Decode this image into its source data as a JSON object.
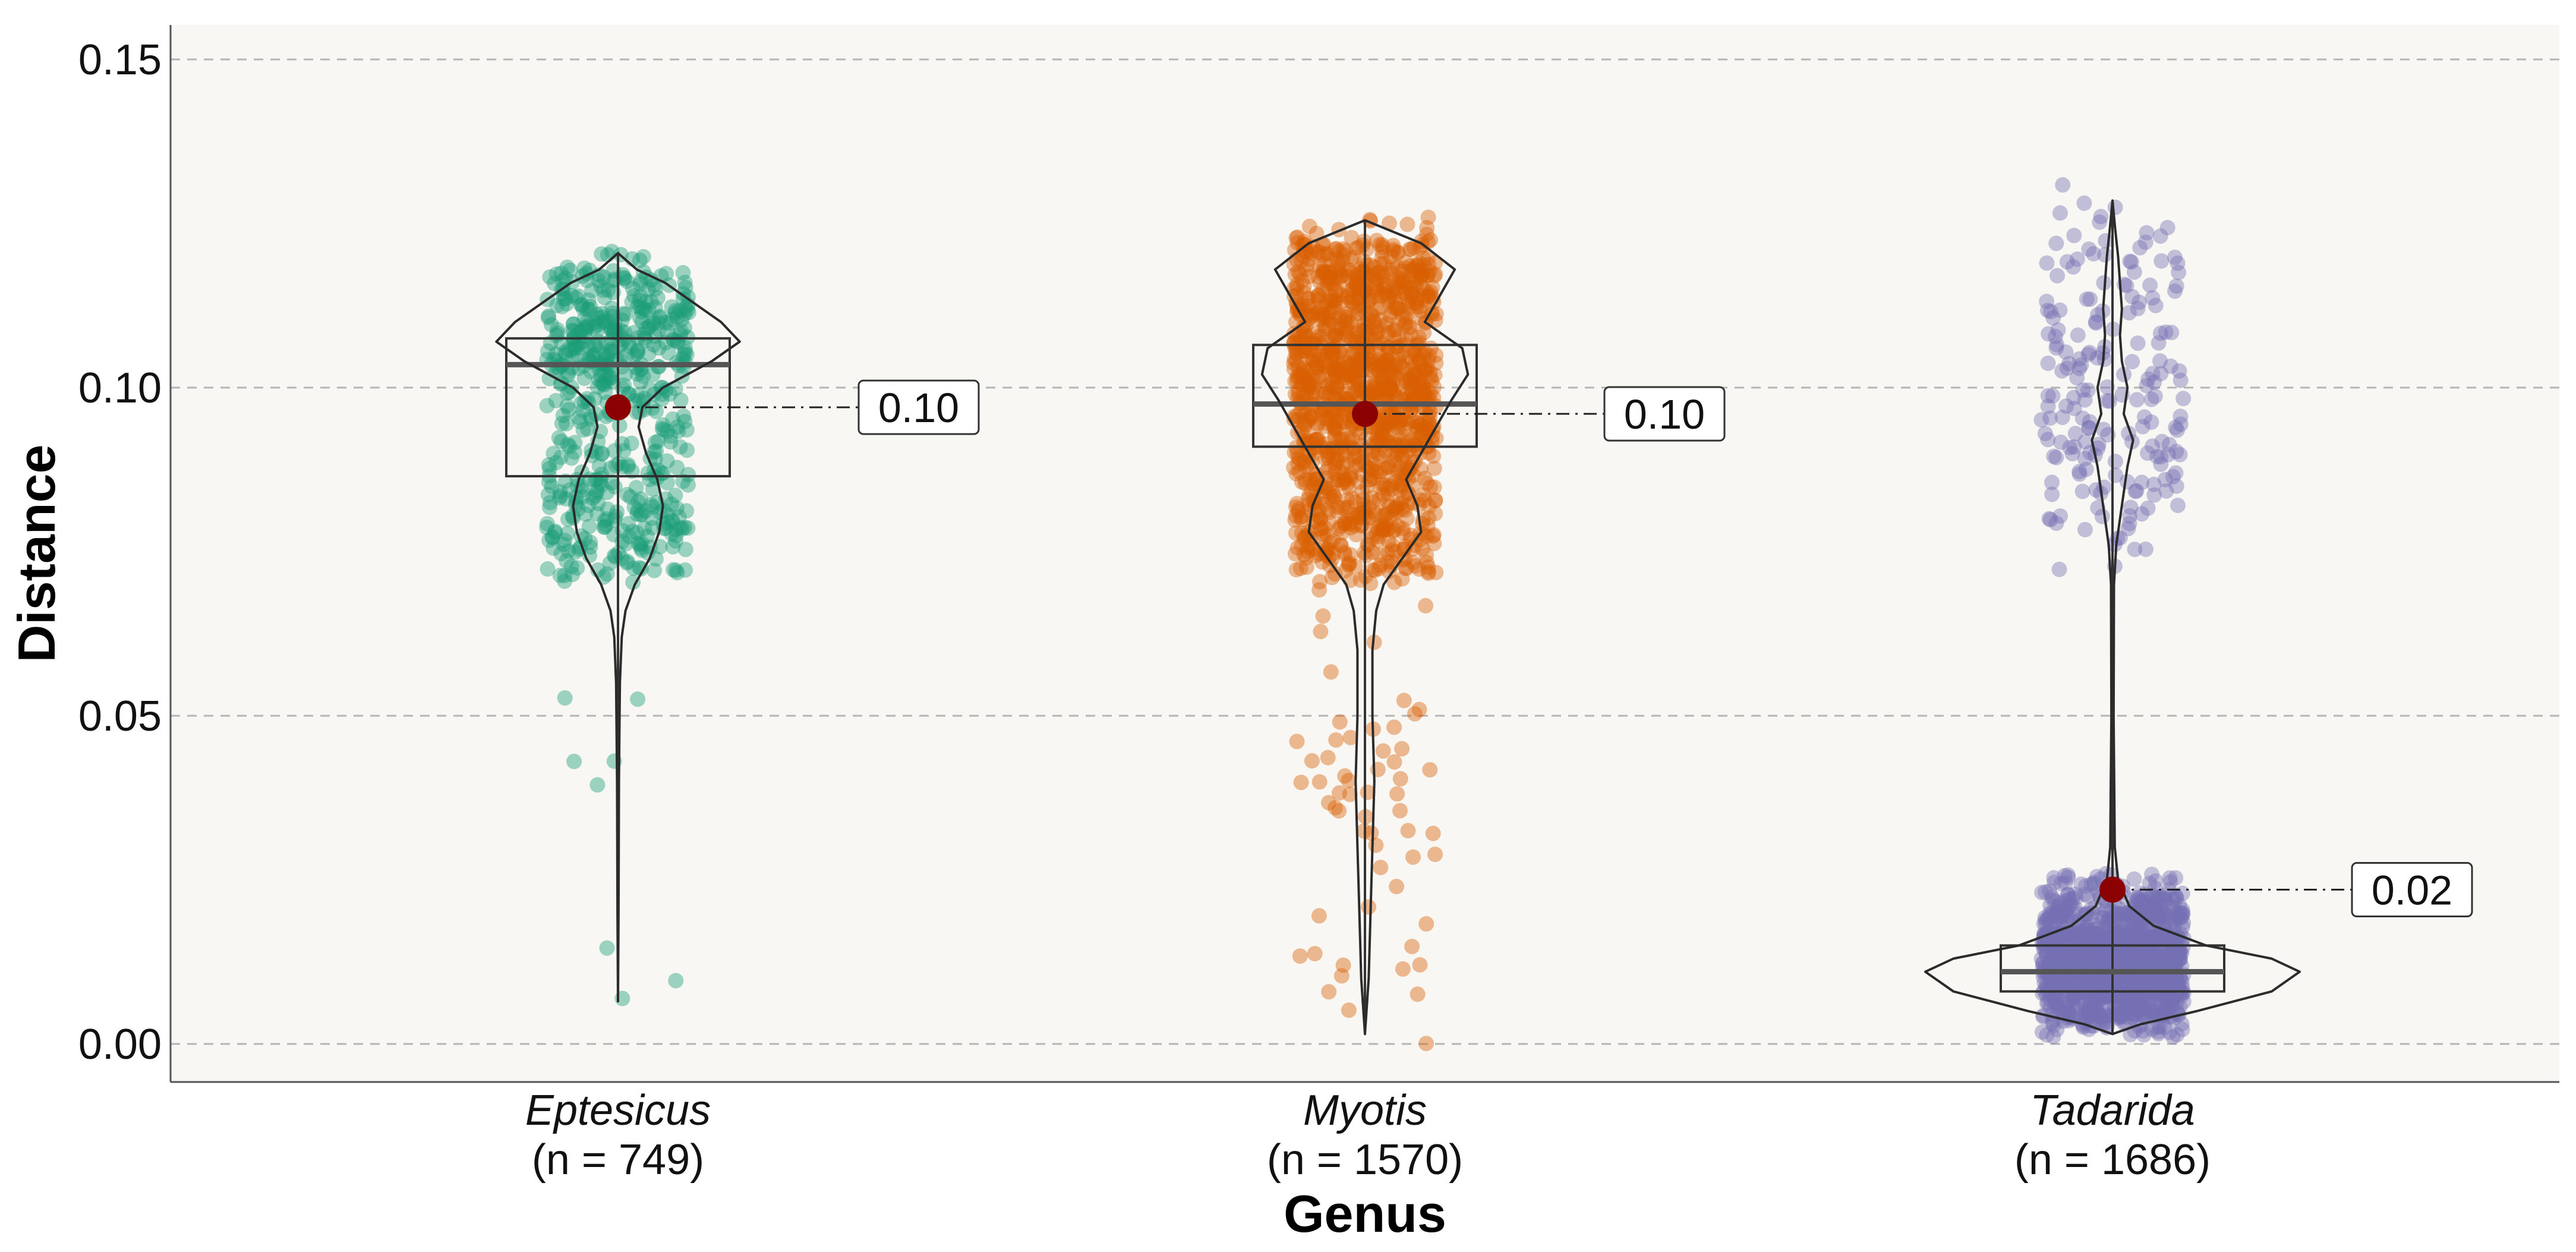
{
  "chart_data": {
    "type": "violin-box-jitter",
    "xlabel": "Genus",
    "ylabel": "Distance",
    "ylim": [
      -0.0055,
      0.155
    ],
    "yticks": [
      0.0,
      0.05,
      0.1,
      0.15
    ],
    "ytick_labels": [
      "0.00",
      "0.05",
      "0.10",
      "0.15"
    ],
    "grid": "horizontal-dashed",
    "mean_marker_color": "#8b0000",
    "panel_background": "#f9f7f3",
    "groups": [
      {
        "name": "Eptesicus",
        "n_label": "(n = 749)",
        "n": 749,
        "color": "#1b9e77",
        "mean": 0.097,
        "mean_label": "0.10",
        "box": {
          "q1": 0.0865,
          "median": 0.1035,
          "q3": 0.1075,
          "whisker_low": 0.0065,
          "whisker_high": 0.1205
        },
        "violin": [
          [
            0.0065,
            0.0
          ],
          [
            0.02,
            0.003
          ],
          [
            0.04,
            0.005
          ],
          [
            0.055,
            0.01
          ],
          [
            0.062,
            0.02
          ],
          [
            0.066,
            0.04
          ],
          [
            0.07,
            0.09
          ],
          [
            0.074,
            0.17
          ],
          [
            0.078,
            0.22
          ],
          [
            0.082,
            0.24
          ],
          [
            0.086,
            0.21
          ],
          [
            0.09,
            0.15
          ],
          [
            0.094,
            0.11
          ],
          [
            0.097,
            0.13
          ],
          [
            0.1,
            0.24
          ],
          [
            0.104,
            0.5
          ],
          [
            0.107,
            0.65
          ],
          [
            0.11,
            0.55
          ],
          [
            0.113,
            0.4
          ],
          [
            0.116,
            0.25
          ],
          [
            0.118,
            0.1
          ],
          [
            0.1205,
            0.0
          ]
        ],
        "points": [
          {
            "y": 0.0095,
            "count": 1
          },
          {
            "y": 0.0065,
            "count": 1
          },
          {
            "y": 0.014,
            "count": 1
          },
          {
            "y": 0.0405,
            "count": 1
          },
          {
            "y": 0.0425,
            "count": 1
          },
          {
            "y": 0.0445,
            "count": 1
          },
          {
            "y": 0.051,
            "count": 1
          },
          {
            "y": 0.0525,
            "count": 1
          },
          {
            "y": 0.072,
            "count": 25
          },
          {
            "y": 0.076,
            "count": 40
          },
          {
            "y": 0.08,
            "count": 50
          },
          {
            "y": 0.084,
            "count": 45
          },
          {
            "y": 0.088,
            "count": 35
          },
          {
            "y": 0.092,
            "count": 30
          },
          {
            "y": 0.096,
            "count": 30
          },
          {
            "y": 0.1,
            "count": 45
          },
          {
            "y": 0.104,
            "count": 70
          },
          {
            "y": 0.108,
            "count": 80
          },
          {
            "y": 0.112,
            "count": 65
          },
          {
            "y": 0.116,
            "count": 40
          },
          {
            "y": 0.119,
            "count": 15
          }
        ]
      },
      {
        "name": "Myotis",
        "n_label": "(n = 1570)",
        "n": 1570,
        "color": "#d95f02",
        "mean": 0.096,
        "mean_label": "0.10",
        "box": {
          "q1": 0.091,
          "median": 0.0975,
          "q3": 0.1065,
          "whisker_low": 0.0015,
          "whisker_high": 0.1255
        },
        "violin": [
          [
            0.0015,
            0.0
          ],
          [
            0.01,
            0.02
          ],
          [
            0.02,
            0.03
          ],
          [
            0.03,
            0.04
          ],
          [
            0.04,
            0.05
          ],
          [
            0.05,
            0.04
          ],
          [
            0.06,
            0.04
          ],
          [
            0.066,
            0.06
          ],
          [
            0.07,
            0.1
          ],
          [
            0.074,
            0.2
          ],
          [
            0.078,
            0.3
          ],
          [
            0.082,
            0.28
          ],
          [
            0.086,
            0.22
          ],
          [
            0.09,
            0.3
          ],
          [
            0.094,
            0.38
          ],
          [
            0.098,
            0.46
          ],
          [
            0.102,
            0.55
          ],
          [
            0.106,
            0.52
          ],
          [
            0.11,
            0.32
          ],
          [
            0.114,
            0.4
          ],
          [
            0.118,
            0.48
          ],
          [
            0.122,
            0.3
          ],
          [
            0.1255,
            0.0
          ]
        ],
        "points": [
          {
            "y": 0.002,
            "count": 1
          },
          {
            "y": 0.006,
            "count": 2
          },
          {
            "y": 0.009,
            "count": 2
          },
          {
            "y": 0.012,
            "count": 3
          },
          {
            "y": 0.015,
            "count": 3
          },
          {
            "y": 0.018,
            "count": 2
          },
          {
            "y": 0.022,
            "count": 2
          },
          {
            "y": 0.027,
            "count": 3
          },
          {
            "y": 0.031,
            "count": 3
          },
          {
            "y": 0.034,
            "count": 4
          },
          {
            "y": 0.037,
            "count": 6
          },
          {
            "y": 0.04,
            "count": 8
          },
          {
            "y": 0.043,
            "count": 5
          },
          {
            "y": 0.046,
            "count": 4
          },
          {
            "y": 0.049,
            "count": 3
          },
          {
            "y": 0.052,
            "count": 2
          },
          {
            "y": 0.057,
            "count": 1
          },
          {
            "y": 0.061,
            "count": 2
          },
          {
            "y": 0.064,
            "count": 1
          },
          {
            "y": 0.068,
            "count": 2
          },
          {
            "y": 0.072,
            "count": 40
          },
          {
            "y": 0.076,
            "count": 70
          },
          {
            "y": 0.08,
            "count": 90
          },
          {
            "y": 0.084,
            "count": 80
          },
          {
            "y": 0.088,
            "count": 85
          },
          {
            "y": 0.092,
            "count": 110
          },
          {
            "y": 0.096,
            "count": 130
          },
          {
            "y": 0.1,
            "count": 150
          },
          {
            "y": 0.104,
            "count": 150
          },
          {
            "y": 0.108,
            "count": 100
          },
          {
            "y": 0.112,
            "count": 110
          },
          {
            "y": 0.116,
            "count": 130
          },
          {
            "y": 0.12,
            "count": 80
          },
          {
            "y": 0.124,
            "count": 20
          }
        ]
      },
      {
        "name": "Tadarida",
        "n_label": "(n = 1686)",
        "n": 1686,
        "color": "#7570b3",
        "mean": 0.0235,
        "mean_label": "0.02",
        "box": {
          "q1": 0.008,
          "median": 0.011,
          "q3": 0.015,
          "whisker_low": 0.0015,
          "whisker_high": 0.1285
        },
        "violin": [
          [
            0.0015,
            0.0
          ],
          [
            0.003,
            0.15
          ],
          [
            0.005,
            0.45
          ],
          [
            0.008,
            0.85
          ],
          [
            0.011,
            1.0
          ],
          [
            0.013,
            0.85
          ],
          [
            0.015,
            0.5
          ],
          [
            0.018,
            0.22
          ],
          [
            0.021,
            0.09
          ],
          [
            0.025,
            0.03
          ],
          [
            0.03,
            0.012
          ],
          [
            0.05,
            0.006
          ],
          [
            0.07,
            0.008
          ],
          [
            0.076,
            0.02
          ],
          [
            0.08,
            0.04
          ],
          [
            0.084,
            0.06
          ],
          [
            0.088,
            0.08
          ],
          [
            0.092,
            0.11
          ],
          [
            0.096,
            0.06
          ],
          [
            0.1,
            0.08
          ],
          [
            0.104,
            0.05
          ],
          [
            0.108,
            0.04
          ],
          [
            0.112,
            0.05
          ],
          [
            0.116,
            0.04
          ],
          [
            0.12,
            0.03
          ],
          [
            0.124,
            0.015
          ],
          [
            0.1285,
            0.0
          ]
        ],
        "points": [
          {
            "y": 0.003,
            "count": 60
          },
          {
            "y": 0.006,
            "count": 150
          },
          {
            "y": 0.009,
            "count": 240
          },
          {
            "y": 0.012,
            "count": 270
          },
          {
            "y": 0.015,
            "count": 220
          },
          {
            "y": 0.018,
            "count": 150
          },
          {
            "y": 0.021,
            "count": 100
          },
          {
            "y": 0.024,
            "count": 40
          },
          {
            "y": 0.074,
            "count": 4
          },
          {
            "y": 0.078,
            "count": 8
          },
          {
            "y": 0.082,
            "count": 12
          },
          {
            "y": 0.086,
            "count": 18
          },
          {
            "y": 0.09,
            "count": 24
          },
          {
            "y": 0.094,
            "count": 20
          },
          {
            "y": 0.098,
            "count": 16
          },
          {
            "y": 0.102,
            "count": 18
          },
          {
            "y": 0.106,
            "count": 14
          },
          {
            "y": 0.11,
            "count": 16
          },
          {
            "y": 0.114,
            "count": 14
          },
          {
            "y": 0.118,
            "count": 12
          },
          {
            "y": 0.122,
            "count": 10
          },
          {
            "y": 0.126,
            "count": 5
          },
          {
            "y": 0.129,
            "count": 2
          }
        ]
      }
    ]
  }
}
